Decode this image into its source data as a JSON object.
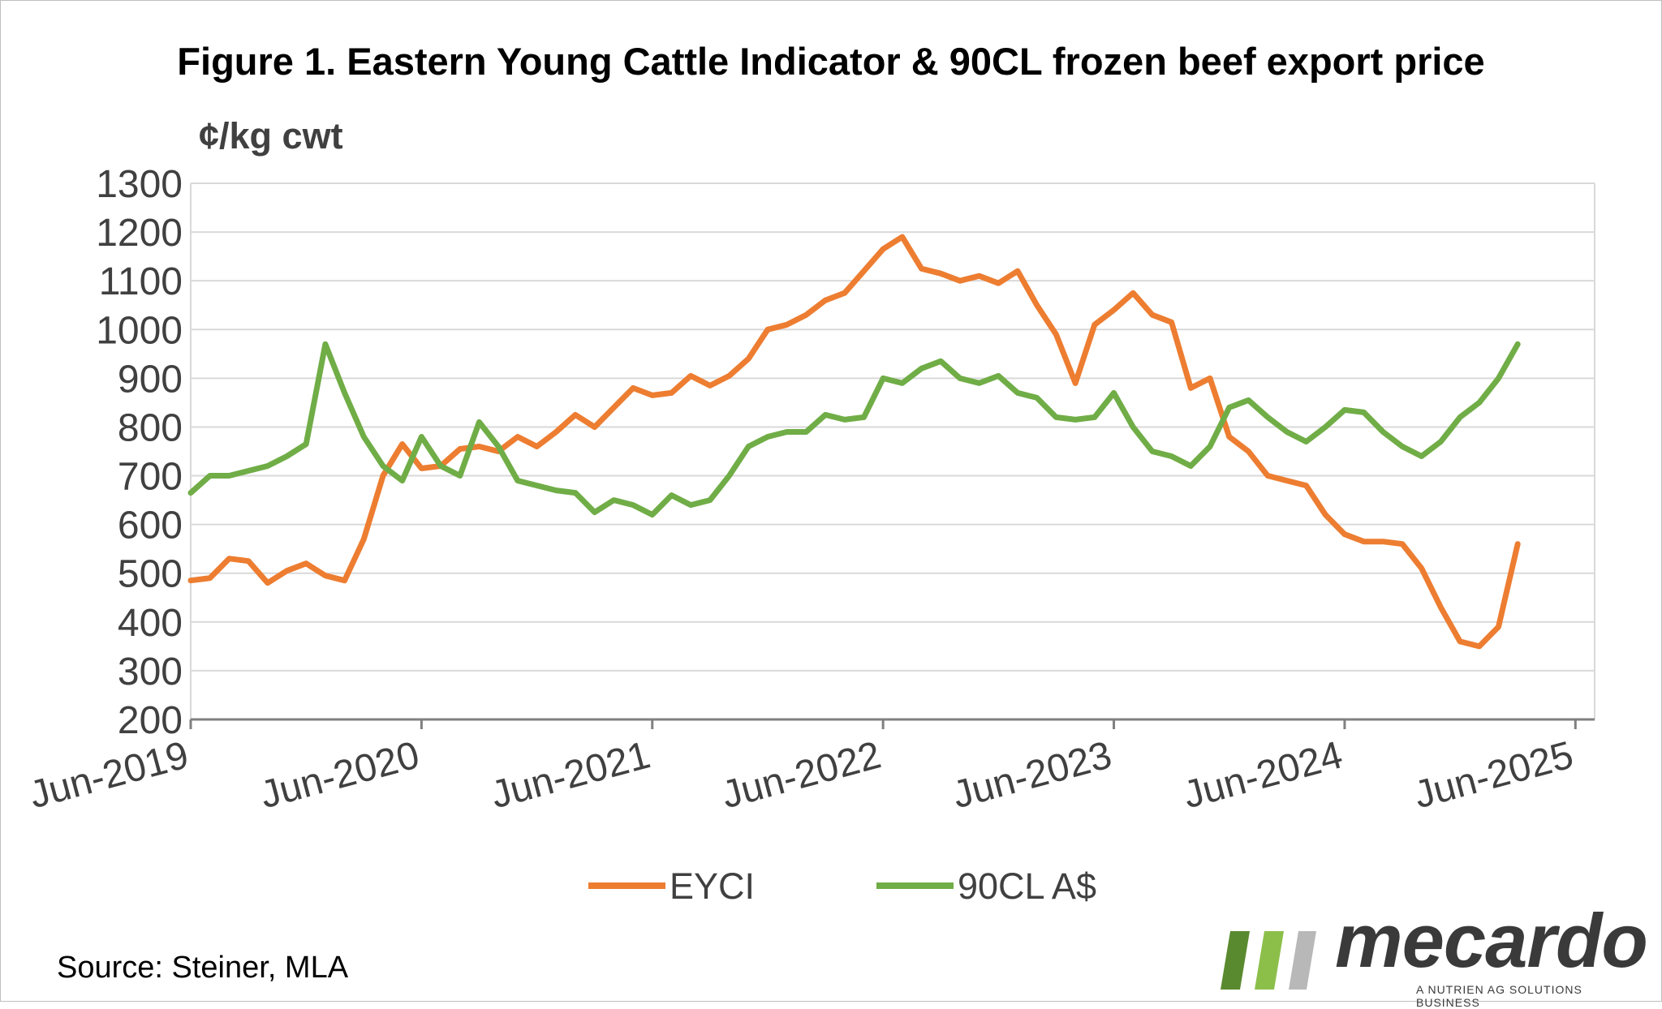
{
  "chart_data": {
    "type": "line",
    "title": "Figure 1. Eastern Young Cattle Indicator & 90CL frozen beef export price",
    "ylabel": "¢/kg cwt",
    "xlabel": "",
    "ylim": [
      200,
      1300
    ],
    "yticks": [
      200,
      300,
      400,
      500,
      600,
      700,
      800,
      900,
      1000,
      1100,
      1200,
      1300
    ],
    "xlim": [
      "2019-06",
      "2025-07"
    ],
    "xticks": [
      {
        "date": "2019-06",
        "label": "Jun-2019"
      },
      {
        "date": "2020-06",
        "label": "Jun-2020"
      },
      {
        "date": "2021-06",
        "label": "Jun-2021"
      },
      {
        "date": "2022-06",
        "label": "Jun-2022"
      },
      {
        "date": "2023-06",
        "label": "Jun-2023"
      },
      {
        "date": "2024-06",
        "label": "Jun-2024"
      },
      {
        "date": "2025-06",
        "label": "Jun-2025"
      }
    ],
    "grid": "horizontal",
    "legend": "bottom",
    "series": [
      {
        "name": "EYCI",
        "color": "#ED7D31",
        "points": [
          [
            "2019-06",
            485
          ],
          [
            "2019-07",
            490
          ],
          [
            "2019-08",
            530
          ],
          [
            "2019-09",
            525
          ],
          [
            "2019-10",
            480
          ],
          [
            "2019-11",
            505
          ],
          [
            "2019-12",
            520
          ],
          [
            "2020-01",
            495
          ],
          [
            "2020-02",
            485
          ],
          [
            "2020-03",
            570
          ],
          [
            "2020-04",
            700
          ],
          [
            "2020-05",
            765
          ],
          [
            "2020-06",
            715
          ],
          [
            "2020-07",
            720
          ],
          [
            "2020-08",
            755
          ],
          [
            "2020-09",
            760
          ],
          [
            "2020-10",
            750
          ],
          [
            "2020-11",
            780
          ],
          [
            "2020-12",
            760
          ],
          [
            "2021-01",
            790
          ],
          [
            "2021-02",
            825
          ],
          [
            "2021-03",
            800
          ],
          [
            "2021-04",
            840
          ],
          [
            "2021-05",
            880
          ],
          [
            "2021-06",
            865
          ],
          [
            "2021-07",
            870
          ],
          [
            "2021-08",
            905
          ],
          [
            "2021-09",
            885
          ],
          [
            "2021-10",
            905
          ],
          [
            "2021-11",
            940
          ],
          [
            "2021-12",
            1000
          ],
          [
            "2022-01",
            1010
          ],
          [
            "2022-02",
            1030
          ],
          [
            "2022-03",
            1060
          ],
          [
            "2022-04",
            1075
          ],
          [
            "2022-05",
            1120
          ],
          [
            "2022-06",
            1165
          ],
          [
            "2022-07",
            1190
          ],
          [
            "2022-08",
            1125
          ],
          [
            "2022-09",
            1115
          ],
          [
            "2022-10",
            1100
          ],
          [
            "2022-11",
            1110
          ],
          [
            "2022-12",
            1095
          ],
          [
            "2023-01",
            1120
          ],
          [
            "2023-02",
            1050
          ],
          [
            "2023-03",
            990
          ],
          [
            "2023-04",
            890
          ],
          [
            "2023-05",
            1010
          ],
          [
            "2023-06",
            1040
          ],
          [
            "2023-07",
            1075
          ],
          [
            "2023-08",
            1030
          ],
          [
            "2023-09",
            1015
          ],
          [
            "2023-10",
            880
          ],
          [
            "2023-11",
            900
          ],
          [
            "2023-12",
            780
          ],
          [
            "2024-01",
            750
          ],
          [
            "2024-02",
            700
          ],
          [
            "2024-03",
            690
          ],
          [
            "2024-04",
            680
          ],
          [
            "2024-05",
            620
          ],
          [
            "2024-06",
            580
          ],
          [
            "2024-07",
            565
          ],
          [
            "2024-08",
            565
          ],
          [
            "2024-09",
            560
          ],
          [
            "2024-10",
            510
          ],
          [
            "2024-11",
            430
          ],
          [
            "2024-12",
            360
          ],
          [
            "2025-01",
            350
          ],
          [
            "2025-02",
            390
          ],
          [
            "2025-03",
            560
          ]
        ]
      },
      {
        "name": "90CL A$",
        "color": "#70AD47",
        "points": [
          [
            "2019-06",
            665
          ],
          [
            "2019-07",
            700
          ],
          [
            "2019-08",
            700
          ],
          [
            "2019-09",
            710
          ],
          [
            "2019-10",
            720
          ],
          [
            "2019-11",
            740
          ],
          [
            "2019-12",
            765
          ],
          [
            "2020-01",
            970
          ],
          [
            "2020-02",
            870
          ],
          [
            "2020-03",
            780
          ],
          [
            "2020-04",
            720
          ],
          [
            "2020-05",
            690
          ],
          [
            "2020-06",
            780
          ],
          [
            "2020-07",
            720
          ],
          [
            "2020-08",
            700
          ],
          [
            "2020-09",
            810
          ],
          [
            "2020-10",
            760
          ],
          [
            "2020-11",
            690
          ],
          [
            "2020-12",
            680
          ],
          [
            "2021-01",
            670
          ],
          [
            "2021-02",
            665
          ],
          [
            "2021-03",
            625
          ],
          [
            "2021-04",
            650
          ],
          [
            "2021-05",
            640
          ],
          [
            "2021-06",
            620
          ],
          [
            "2021-07",
            660
          ],
          [
            "2021-08",
            640
          ],
          [
            "2021-09",
            650
          ],
          [
            "2021-10",
            700
          ],
          [
            "2021-11",
            760
          ],
          [
            "2021-12",
            780
          ],
          [
            "2022-01",
            790
          ],
          [
            "2022-02",
            790
          ],
          [
            "2022-03",
            825
          ],
          [
            "2022-04",
            815
          ],
          [
            "2022-05",
            820
          ],
          [
            "2022-06",
            900
          ],
          [
            "2022-07",
            890
          ],
          [
            "2022-08",
            920
          ],
          [
            "2022-09",
            935
          ],
          [
            "2022-10",
            900
          ],
          [
            "2022-11",
            890
          ],
          [
            "2022-12",
            905
          ],
          [
            "2023-01",
            870
          ],
          [
            "2023-02",
            860
          ],
          [
            "2023-03",
            820
          ],
          [
            "2023-04",
            815
          ],
          [
            "2023-05",
            820
          ],
          [
            "2023-06",
            870
          ],
          [
            "2023-07",
            800
          ],
          [
            "2023-08",
            750
          ],
          [
            "2023-09",
            740
          ],
          [
            "2023-10",
            720
          ],
          [
            "2023-11",
            760
          ],
          [
            "2023-12",
            840
          ],
          [
            "2024-01",
            855
          ],
          [
            "2024-02",
            820
          ],
          [
            "2024-03",
            790
          ],
          [
            "2024-04",
            770
          ],
          [
            "2024-05",
            800
          ],
          [
            "2024-06",
            835
          ],
          [
            "2024-07",
            830
          ],
          [
            "2024-08",
            790
          ],
          [
            "2024-09",
            760
          ],
          [
            "2024-10",
            740
          ],
          [
            "2024-11",
            770
          ],
          [
            "2024-12",
            820
          ],
          [
            "2025-01",
            850
          ],
          [
            "2025-02",
            900
          ],
          [
            "2025-03",
            970
          ]
        ]
      }
    ]
  },
  "source": "Source: Steiner, MLA",
  "logo": {
    "word": "mecardo",
    "tagline": "A NUTRIEN AG SOLUTIONS BUSINESS",
    "colors": [
      "#5a8a2f",
      "#8cbf4a",
      "#b8b8b8"
    ]
  }
}
